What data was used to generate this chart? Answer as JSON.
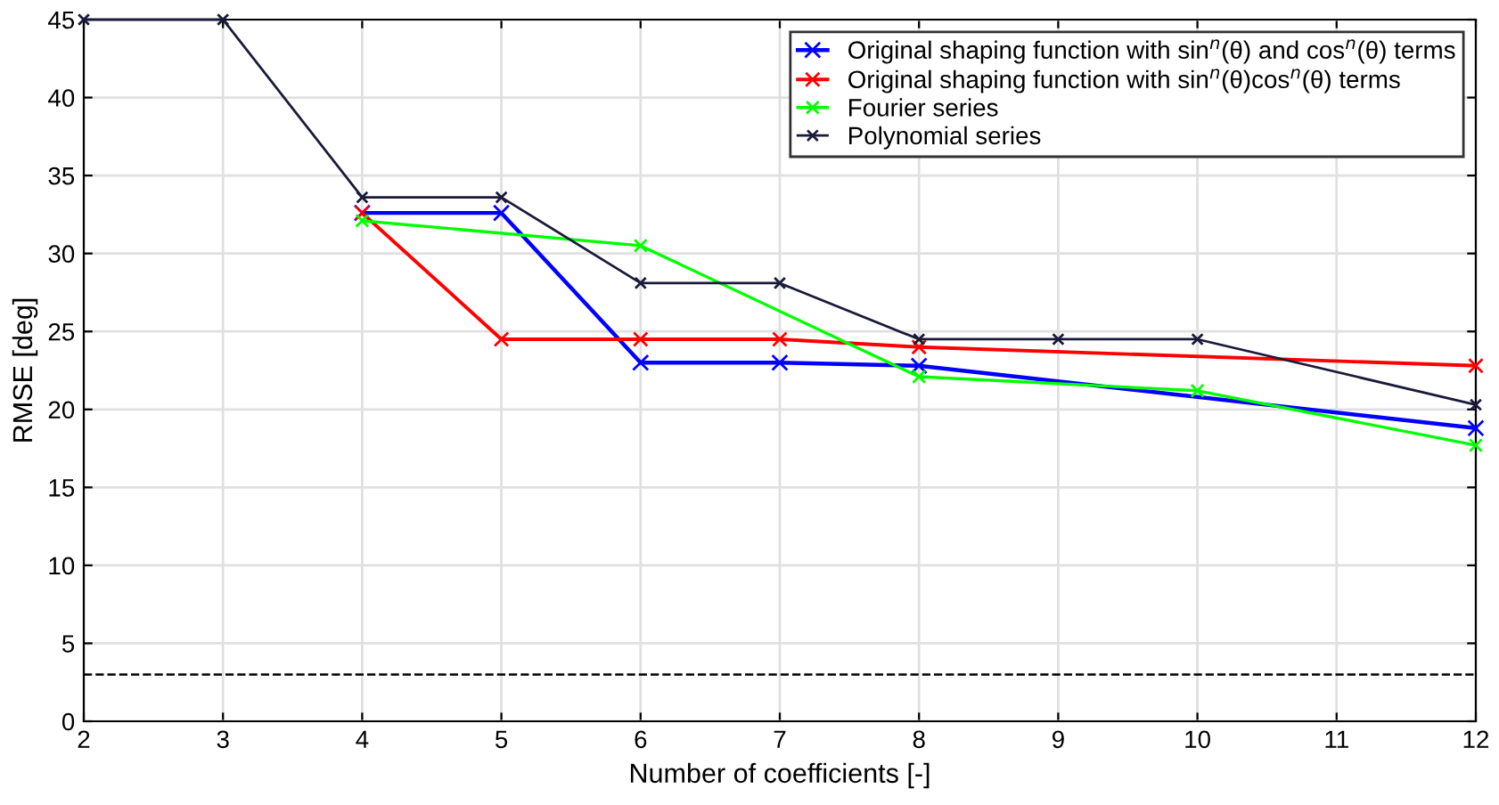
{
  "chart_data": {
    "type": "line",
    "xlabel": "Number of coefficients [-]",
    "ylabel": "RMSE [deg]",
    "xlim": [
      2,
      12
    ],
    "xticks": [
      2,
      3,
      4,
      5,
      6,
      7,
      8,
      9,
      10,
      11,
      12
    ],
    "ylim": [
      0,
      45
    ],
    "yticks": [
      0,
      5,
      10,
      15,
      20,
      25,
      30,
      35,
      40,
      45
    ],
    "grid": true,
    "legend": "top right",
    "marker": "cross",
    "line_style": "solid",
    "series": [
      {
        "name": "Original shaping function with sin$^{n}$(θ) and cos$^{n}$(θ) terms",
        "color": "#0000ff",
        "x": [
          4,
          5,
          6,
          7,
          8,
          12
        ],
        "values": [
          32.6,
          32.6,
          23.0,
          23.0,
          22.8,
          18.8
        ]
      },
      {
        "name": "Original shaping function with sin$^{n}$(θ)cos$^{n}$(θ) terms",
        "color": "#ff0000",
        "x": [
          4,
          5,
          6,
          7,
          8,
          12
        ],
        "values": [
          32.6,
          24.5,
          24.5,
          24.5,
          24.0,
          22.8
        ]
      },
      {
        "name": "Fourier series",
        "color": "#00ff00",
        "x": [
          4,
          6,
          8,
          10,
          12
        ],
        "values": [
          32.1,
          30.5,
          22.1,
          21.2,
          17.7
        ]
      },
      {
        "name": "Polynomial series",
        "color": "#1a1a3a",
        "x": [
          2,
          3,
          4,
          5,
          6,
          7,
          8,
          9,
          10,
          12
        ],
        "values": [
          45,
          45,
          33.6,
          33.6,
          28.1,
          28.1,
          24.5,
          24.5,
          24.5,
          20.3
        ]
      }
    ],
    "ref_lines": [
      {
        "axis": "y",
        "value": 3,
        "color": "#000000",
        "line_style": "dashed"
      }
    ]
  }
}
